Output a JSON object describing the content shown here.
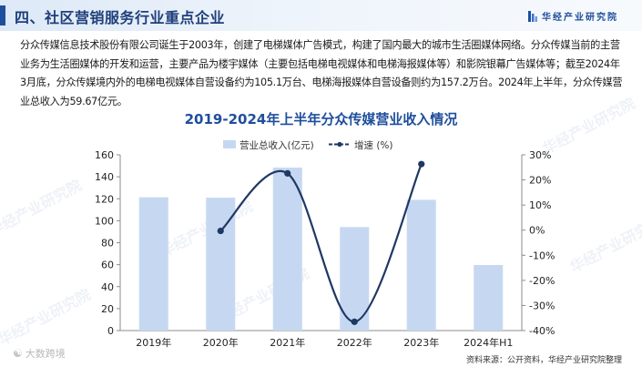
{
  "header": {
    "title": "四、社区营销服务行业重点企业",
    "brand": "华经产业研究院"
  },
  "intro_text": "分众传媒信息技术股份有限公司诞生于2003年，创建了电梯媒体广告模式，构建了国内最大的城市生活圈媒体网络。分众传媒当前的主营业务为生活圈媒体的开发和运营，主要产品为楼宇媒体（主要包括电梯电视媒体和电梯海报媒体等）和影院银幕广告媒体等；截至2024年3月底，分众传媒境内外的电梯电视媒体自营设备约为105.1万台、电梯海报媒体自营设备则约为157.2万台。2024年上半年，分众传媒营业总收入为59.67亿元。",
  "watermark_text": "华经产业研究院",
  "footer": {
    "watermark": "大数跨境",
    "source": "资料来源：公开资料，华经产业研究院整理"
  },
  "colors": {
    "bar": "#c6d8f1",
    "line": "#1f3864",
    "title": "#1f4e9c",
    "header_accent": "#1f4e9c"
  },
  "chart_data": {
    "type": "bar",
    "title": "2019-2024年上半年分众传媒营业收入情况",
    "categories": [
      "2019年",
      "2020年",
      "2021年",
      "2022年",
      "2023年",
      "2024年H1"
    ],
    "series": [
      {
        "name": "营业总收入(亿元)",
        "type": "bar",
        "axis": "left",
        "values": [
          121.36,
          120.97,
          148.36,
          94.25,
          119.04,
          59.67
        ]
      },
      {
        "name": "增速 (%)",
        "type": "line",
        "axis": "right",
        "smooth": true,
        "values": [
          null,
          -0.3,
          22.6,
          -36.5,
          26.3,
          null
        ]
      }
    ],
    "y_left": {
      "min": 0,
      "max": 160,
      "step": 20,
      "ticks": [
        "0",
        "20",
        "40",
        "60",
        "80",
        "100",
        "120",
        "140",
        "160"
      ]
    },
    "y_right": {
      "min": -40,
      "max": 30,
      "step": 10,
      "ticks": [
        "-40%",
        "-30%",
        "-20%",
        "-10%",
        "0%",
        "10%",
        "20%",
        "30%"
      ]
    },
    "legend_position": "top-center",
    "grid": false
  }
}
